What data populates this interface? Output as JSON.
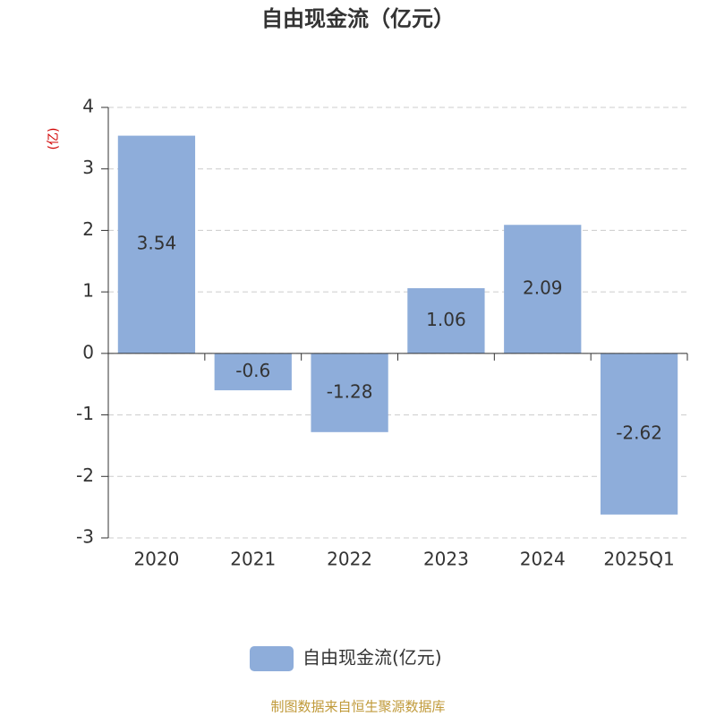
{
  "chart_data": {
    "type": "bar",
    "title": "自由现金流（亿元）",
    "y_label": "(亿)",
    "categories": [
      "2020",
      "2021",
      "2022",
      "2023",
      "2024",
      "2025Q1"
    ],
    "series": [
      {
        "name": "自由现金流(亿元)",
        "color": "#8eadda",
        "values": [
          3.54,
          -0.6,
          -1.28,
          1.06,
          2.09,
          -2.62
        ]
      }
    ],
    "ylim": [
      -3,
      4
    ],
    "yticks": [
      -3,
      -2,
      -1,
      0,
      1,
      2,
      3,
      4
    ],
    "grid": true,
    "source": "制图数据来自恒生聚源数据库"
  }
}
